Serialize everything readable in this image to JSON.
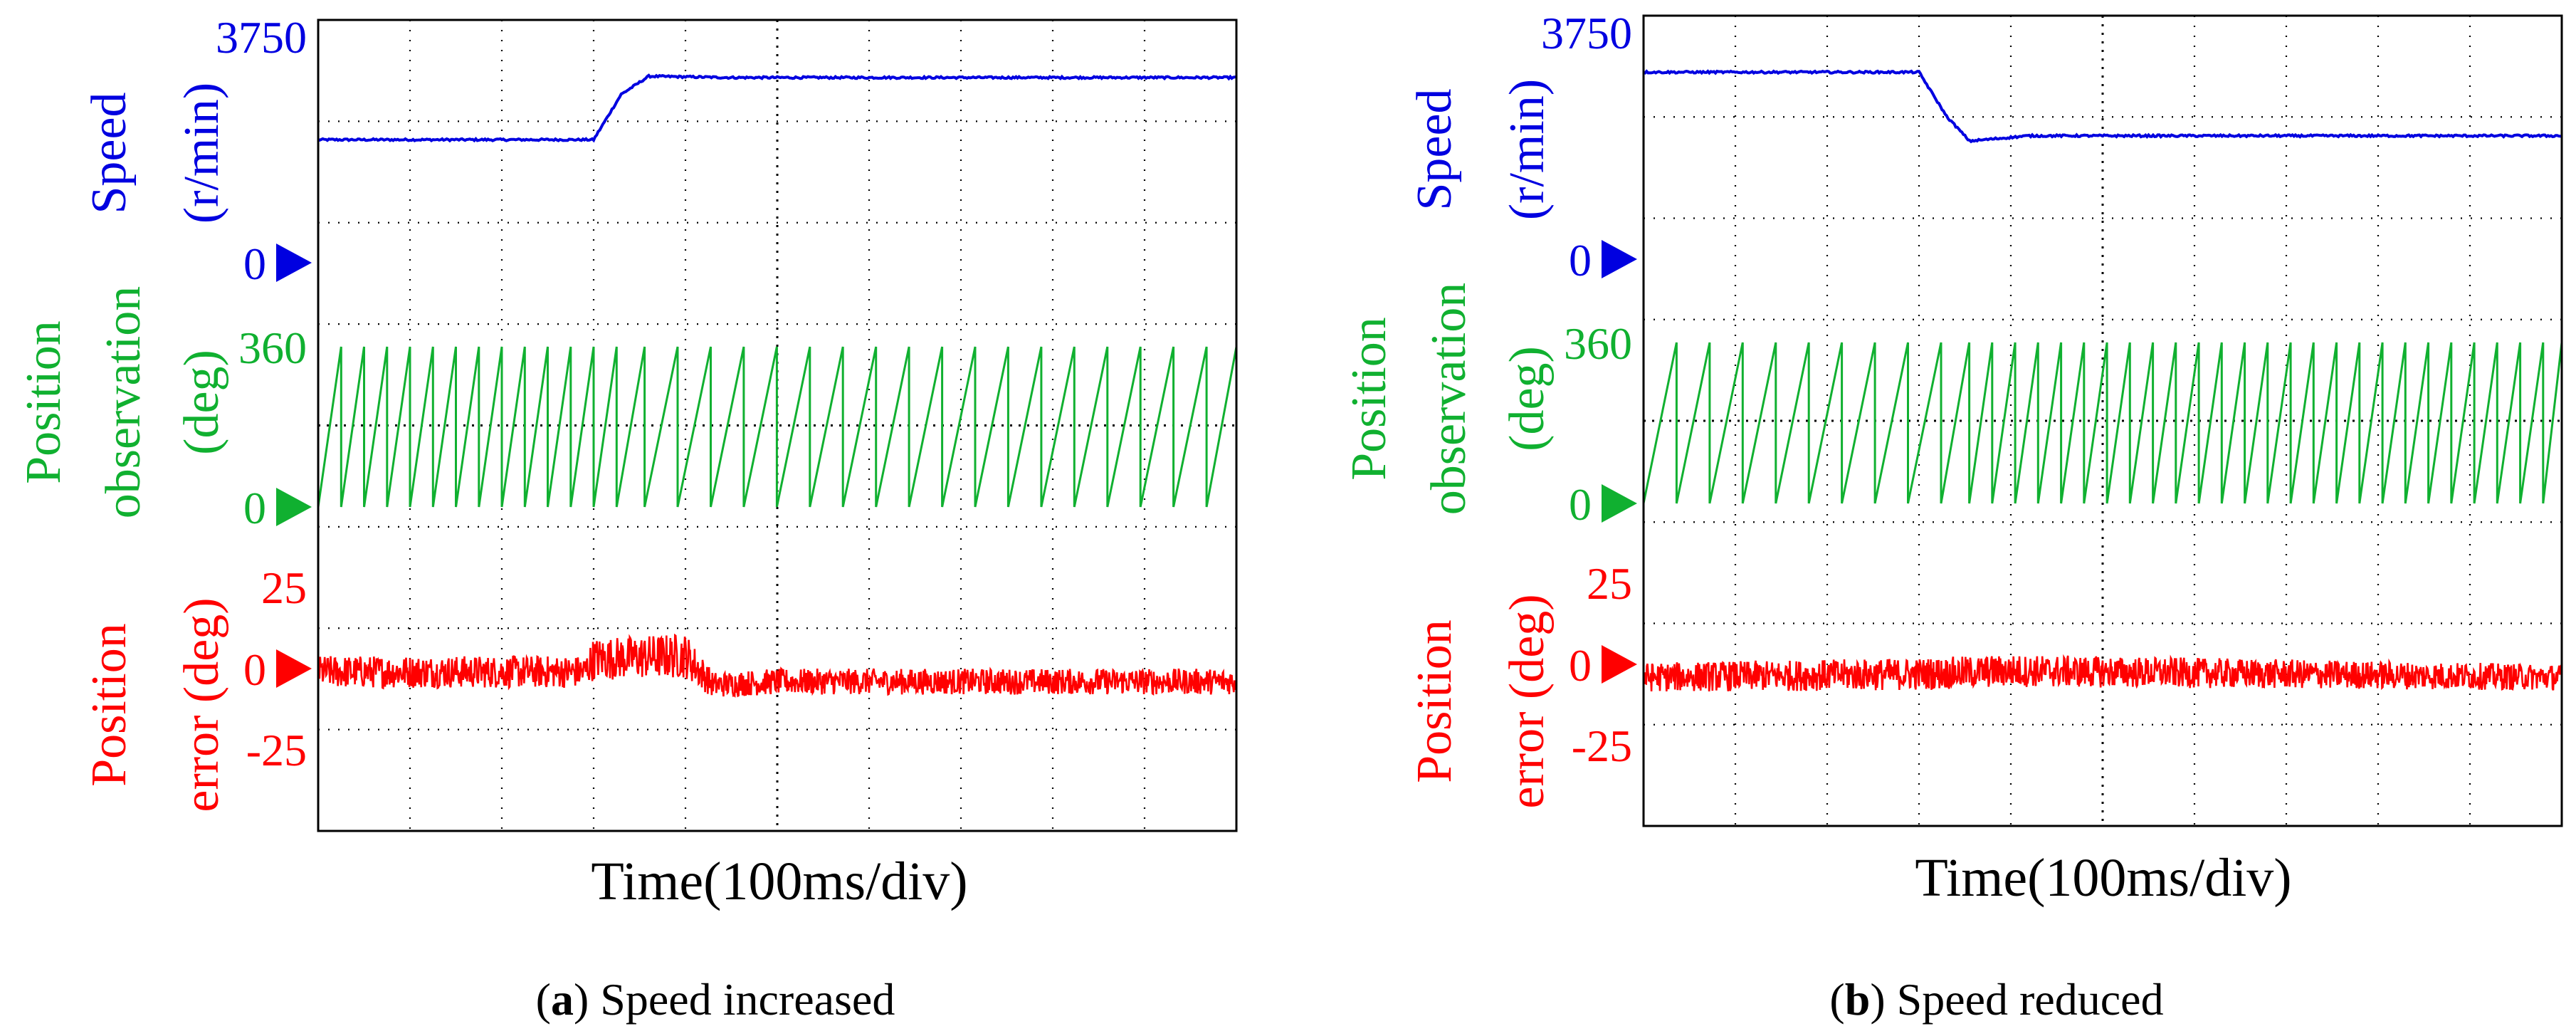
{
  "colors": {
    "speed": "#0000e0",
    "position": "#10b030",
    "error": "#ff0000",
    "grid": "#000000"
  },
  "chart_data": [
    {
      "type": "line",
      "caption_letter": "a",
      "caption_text": " Speed increased",
      "xlabel": "Time(100ms/div)",
      "x_divisions": 10,
      "x_unit_ms_per_div": 100,
      "series": [
        {
          "name": "Speed",
          "unit_label": "(r/min)",
          "top_label": "3750",
          "zero_label": "0",
          "points": [
            [
              0,
              1900
            ],
            [
              3.0,
              1900
            ],
            [
              3.3,
              2600
            ],
            [
              3.6,
              2880
            ],
            [
              4.5,
              2860
            ],
            [
              10,
              2860
            ]
          ]
        },
        {
          "name": "Position observation",
          "unit_label": "(deg)",
          "top_label": "360",
          "zero_label": "0",
          "sawtooth": [
            [
              0,
              2.5
            ],
            [
              3.0,
              2.5
            ],
            [
              3.5,
              3.6
            ],
            [
              10,
              3.6
            ]
          ]
        },
        {
          "name": "Position error",
          "unit_label": "(deg)",
          "top_label": "25",
          "zero_label": "0",
          "bottom_label": "-25",
          "envelope": [
            [
              0,
              -1,
              10
            ],
            [
              2.9,
              -1,
              10
            ],
            [
              3.0,
              3,
              13
            ],
            [
              4.0,
              4,
              14
            ],
            [
              4.3,
              -5,
              8
            ],
            [
              5.0,
              -4,
              8
            ],
            [
              10,
              -4,
              8
            ]
          ]
        }
      ]
    },
    {
      "type": "line",
      "caption_letter": "b",
      "caption_text": " Speed reduced",
      "xlabel": "Time(100ms/div)",
      "x_divisions": 10,
      "x_unit_ms_per_div": 100,
      "series": [
        {
          "name": "Speed",
          "unit_label": "(r/min)",
          "top_label": "3750",
          "zero_label": "0",
          "points": [
            [
              0,
              2880
            ],
            [
              3.0,
              2880
            ],
            [
              3.3,
              2200
            ],
            [
              3.55,
              1820
            ],
            [
              4.2,
              1900
            ],
            [
              10,
              1900
            ]
          ]
        },
        {
          "name": "Position observation",
          "unit_label": "(deg)",
          "top_label": "360",
          "zero_label": "0",
          "sawtooth": [
            [
              0,
              3.6
            ],
            [
              3.0,
              3.6
            ],
            [
              3.5,
              2.5
            ],
            [
              10,
              2.5
            ]
          ]
        },
        {
          "name": "Position error",
          "unit_label": "(deg)",
          "top_label": "25",
          "zero_label": "0",
          "bottom_label": "-25",
          "envelope": [
            [
              0,
              -4,
              9
            ],
            [
              3.0,
              -3,
              10
            ],
            [
              4.0,
              -2,
              10
            ],
            [
              10,
              -4,
              8
            ]
          ]
        }
      ]
    }
  ]
}
